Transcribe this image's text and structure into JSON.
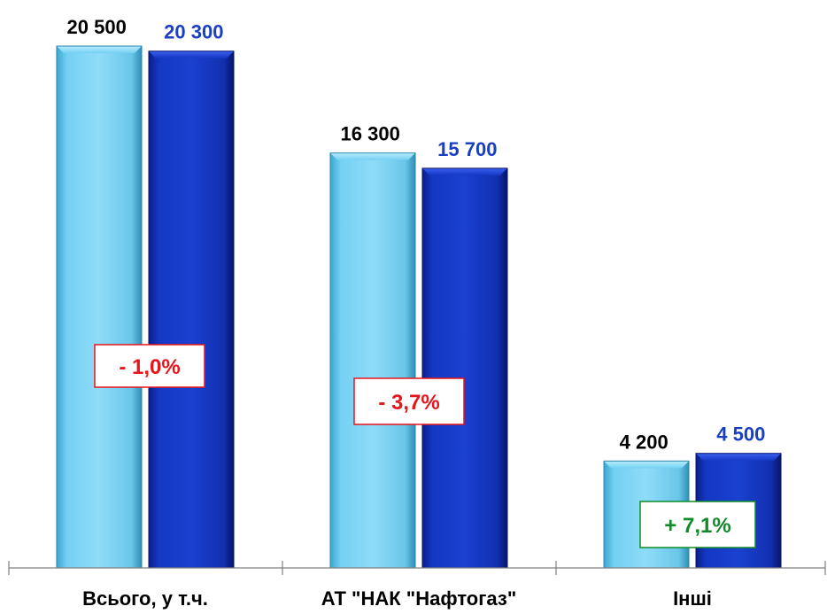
{
  "chart_data": {
    "type": "bar",
    "categories": [
      "Всього, у т.ч.",
      "АТ \"НАК \"Нафтогаз\"",
      "Інші"
    ],
    "series": [
      {
        "values": [
          20500,
          16300,
          4200
        ],
        "labels": [
          "20 500",
          "16 300",
          "4 200"
        ]
      },
      {
        "values": [
          20300,
          15700,
          4500
        ],
        "labels": [
          "20 300",
          "15 700",
          "4 500"
        ]
      }
    ],
    "changes": [
      "- 1,0%",
      "- 3,7%",
      "+ 7,1%"
    ],
    "ylim": [
      0,
      20500
    ],
    "grid": false,
    "legend": "none"
  },
  "colors": {
    "series_1": "#66ccee",
    "series_2": "#1133bb",
    "label_1": "#000000",
    "label_2": "#1a3fc0",
    "negative": "#e8141b",
    "positive": "#118a2a"
  }
}
